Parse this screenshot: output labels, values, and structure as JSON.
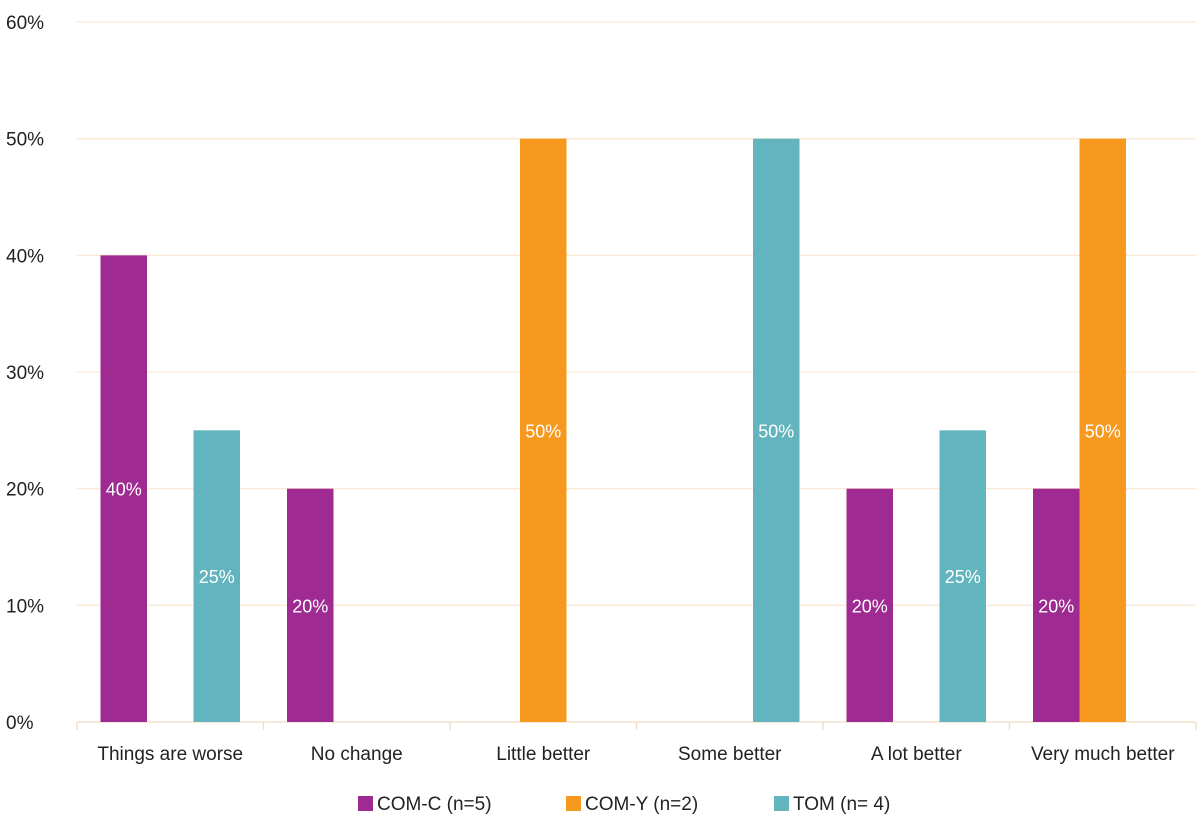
{
  "chart_data": {
    "type": "bar",
    "categories": [
      "Things are worse",
      "No change",
      "Little better",
      "Some better",
      "A lot better",
      "Very much better"
    ],
    "series": [
      {
        "name": "COM-C (n=5)",
        "color": "#9e2a92",
        "values": [
          40,
          20,
          0,
          0,
          20,
          20
        ]
      },
      {
        "name": "COM-Y (n=2)",
        "color": "#f7991f",
        "values": [
          0,
          0,
          50,
          0,
          0,
          50
        ]
      },
      {
        "name": "TOM (n= 4)",
        "color": "#62b5be",
        "values": [
          25,
          0,
          0,
          50,
          25,
          0
        ]
      }
    ],
    "y_ticks": [
      "0%",
      "10%",
      "20%",
      "30%",
      "40%",
      "50%",
      "60%"
    ],
    "ylim": [
      0,
      60
    ],
    "value_suffix": "%",
    "grid": true,
    "grid_color": "#fbe9d6",
    "legend_position": "bottom",
    "title": "",
    "xlabel": "",
    "ylabel": ""
  }
}
